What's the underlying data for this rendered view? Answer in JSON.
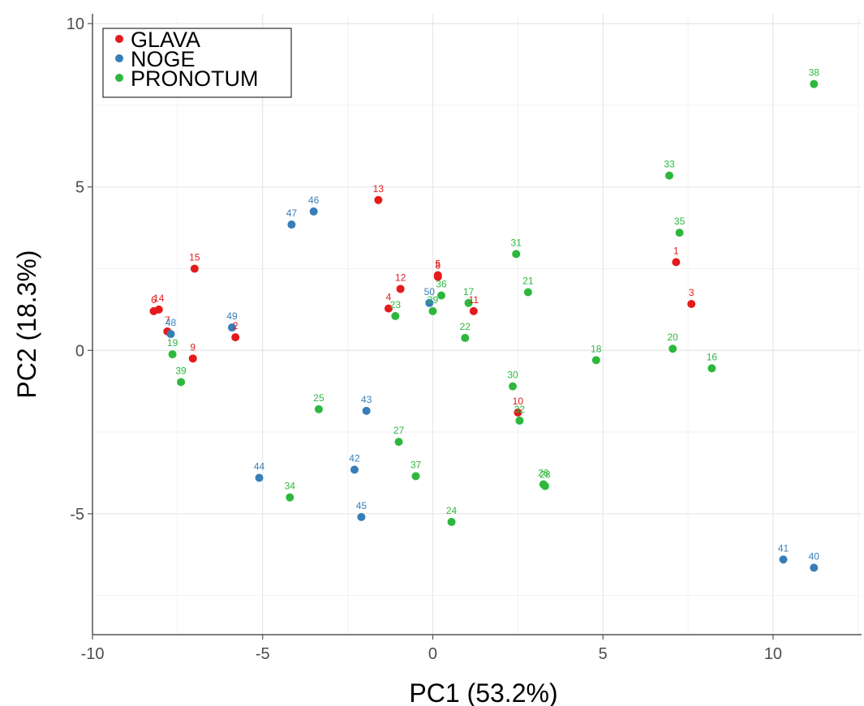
{
  "chart_data": {
    "type": "scatter",
    "xlabel": "PC1 (53.2%)",
    "ylabel": "PC2 (18.3%)",
    "xlim": [
      -10,
      12.6
    ],
    "ylim": [
      -8.7,
      10.3
    ],
    "x_ticks": [
      -10,
      -5,
      0,
      5,
      10
    ],
    "y_ticks": [
      -5,
      0,
      5,
      10
    ],
    "x_tick_labels": [
      "-10",
      "-5",
      "0",
      "5",
      "10"
    ],
    "y_tick_labels": [
      "-5",
      "0",
      "5",
      "10"
    ],
    "grid": true,
    "legend_position": "top-left",
    "series": [
      {
        "name": "GLAVA",
        "color": "#e41a1c",
        "points": [
          {
            "label": "1",
            "x": 7.15,
            "y": 2.7
          },
          {
            "label": "2",
            "x": -5.8,
            "y": 0.4
          },
          {
            "label": "3",
            "x": 7.6,
            "y": 1.42
          },
          {
            "label": "4",
            "x": -1.3,
            "y": 1.28
          },
          {
            "label": "5",
            "x": 0.15,
            "y": 2.3
          },
          {
            "label": "6",
            "x": -8.2,
            "y": 1.2
          },
          {
            "label": "7",
            "x": -7.8,
            "y": 0.58
          },
          {
            "label": "8",
            "x": 0.15,
            "y": 2.25
          },
          {
            "label": "9",
            "x": -7.05,
            "y": -0.25
          },
          {
            "label": "10",
            "x": 2.5,
            "y": -1.9
          },
          {
            "label": "11",
            "x": 1.2,
            "y": 1.2
          },
          {
            "label": "12",
            "x": -0.95,
            "y": 1.88
          },
          {
            "label": "13",
            "x": -1.6,
            "y": 4.6
          },
          {
            "label": "14",
            "x": -8.05,
            "y": 1.25
          },
          {
            "label": "15",
            "x": -7.0,
            "y": 2.5
          }
        ]
      },
      {
        "name": "NOGE",
        "color": "#377eb8",
        "points": [
          {
            "label": "40",
            "x": 11.2,
            "y": -6.65
          },
          {
            "label": "41",
            "x": 10.3,
            "y": -6.4
          },
          {
            "label": "42",
            "x": -2.3,
            "y": -3.65
          },
          {
            "label": "43",
            "x": -1.95,
            "y": -1.85
          },
          {
            "label": "44",
            "x": -5.1,
            "y": -3.9
          },
          {
            "label": "45",
            "x": -2.1,
            "y": -5.1
          },
          {
            "label": "46",
            "x": -3.5,
            "y": 4.25
          },
          {
            "label": "47",
            "x": -4.15,
            "y": 3.85
          },
          {
            "label": "48",
            "x": -7.7,
            "y": 0.5
          },
          {
            "label": "49",
            "x": -5.9,
            "y": 0.7
          },
          {
            "label": "50",
            "x": -0.1,
            "y": 1.45
          }
        ]
      },
      {
        "name": "PRONOTUM",
        "color": "#2db83d",
        "points": [
          {
            "label": "16",
            "x": 8.2,
            "y": -0.55
          },
          {
            "label": "17",
            "x": 1.05,
            "y": 1.45
          },
          {
            "label": "18",
            "x": 4.8,
            "y": -0.3
          },
          {
            "label": "19",
            "x": -7.65,
            "y": -0.12
          },
          {
            "label": "20",
            "x": 7.05,
            "y": 0.05
          },
          {
            "label": "21",
            "x": 2.8,
            "y": 1.78
          },
          {
            "label": "22",
            "x": 0.95,
            "y": 0.38
          },
          {
            "label": "23",
            "x": -1.1,
            "y": 1.05
          },
          {
            "label": "24",
            "x": 0.55,
            "y": -5.25
          },
          {
            "label": "25",
            "x": -3.35,
            "y": -1.8
          },
          {
            "label": "26",
            "x": 3.25,
            "y": -4.1
          },
          {
            "label": "27",
            "x": -1.0,
            "y": -2.8
          },
          {
            "label": "28",
            "x": 3.3,
            "y": -4.15
          },
          {
            "label": "29",
            "x": 0.0,
            "y": 1.2
          },
          {
            "label": "30",
            "x": 2.35,
            "y": -1.1
          },
          {
            "label": "31",
            "x": 2.45,
            "y": 2.95
          },
          {
            "label": "32",
            "x": 2.55,
            "y": -2.15
          },
          {
            "label": "33",
            "x": 6.95,
            "y": 5.35
          },
          {
            "label": "34",
            "x": -4.2,
            "y": -4.5
          },
          {
            "label": "35",
            "x": 7.25,
            "y": 3.6
          },
          {
            "label": "36",
            "x": 0.25,
            "y": 1.68
          },
          {
            "label": "37",
            "x": -0.5,
            "y": -3.85
          },
          {
            "label": "38",
            "x": 11.2,
            "y": 8.15
          },
          {
            "label": "39",
            "x": -7.4,
            "y": -0.97
          }
        ]
      }
    ]
  }
}
